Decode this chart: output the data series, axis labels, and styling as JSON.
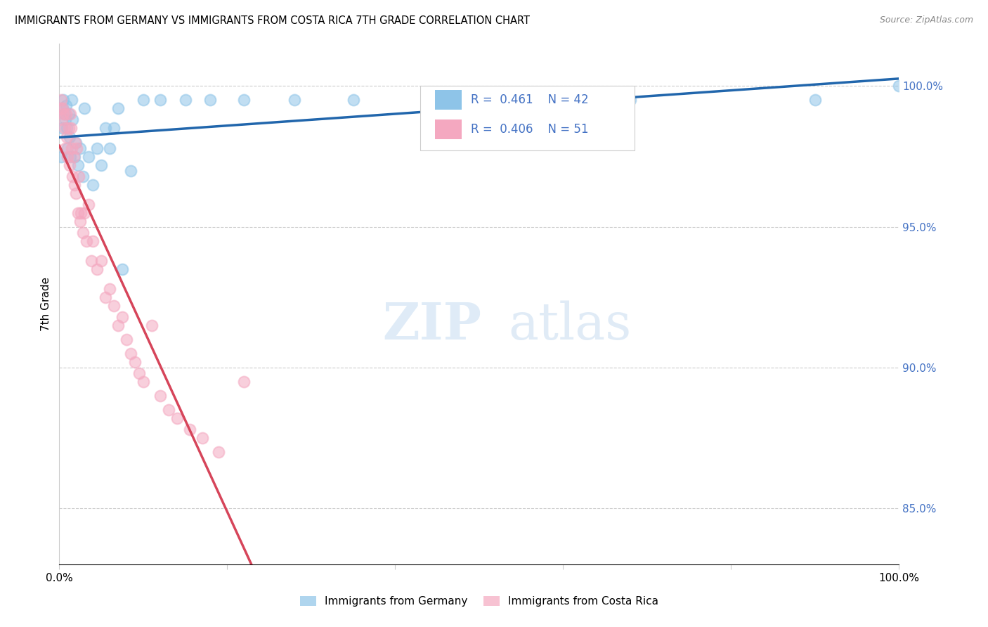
{
  "title": "IMMIGRANTS FROM GERMANY VS IMMIGRANTS FROM COSTA RICA 7TH GRADE CORRELATION CHART",
  "source": "Source: ZipAtlas.com",
  "ylabel": "7th Grade",
  "xlim": [
    0.0,
    100.0
  ],
  "ylim": [
    83.0,
    101.5
  ],
  "yticks": [
    85.0,
    90.0,
    95.0,
    100.0
  ],
  "r_germany": 0.461,
  "n_germany": 42,
  "r_costarica": 0.406,
  "n_costarica": 51,
  "color_germany": "#8ec4e8",
  "color_costarica": "#f4a8c0",
  "trendline_germany": "#2166ac",
  "trendline_costarica": "#d6455a",
  "legend_label_germany": "Immigrants from Germany",
  "legend_label_costarica": "Immigrants from Costa Rica",
  "germany_x": [
    0.2,
    0.3,
    0.4,
    0.5,
    0.6,
    0.7,
    0.8,
    0.9,
    1.0,
    1.1,
    1.2,
    1.3,
    1.5,
    1.6,
    1.8,
    2.0,
    2.2,
    2.5,
    2.8,
    3.0,
    3.5,
    4.0,
    4.5,
    5.0,
    5.5,
    6.0,
    6.5,
    7.0,
    7.5,
    8.5,
    10.0,
    12.0,
    15.0,
    18.0,
    22.0,
    28.0,
    35.0,
    45.0,
    55.0,
    68.0,
    90.0,
    100.0
  ],
  "germany_y": [
    97.5,
    98.5,
    99.2,
    99.5,
    99.0,
    98.8,
    99.3,
    98.5,
    97.8,
    99.0,
    98.2,
    97.5,
    99.5,
    98.8,
    97.5,
    98.0,
    97.2,
    97.8,
    96.8,
    99.2,
    97.5,
    96.5,
    97.8,
    97.2,
    98.5,
    97.8,
    98.5,
    99.2,
    93.5,
    97.0,
    99.5,
    99.5,
    99.5,
    99.5,
    99.5,
    99.5,
    99.5,
    99.5,
    99.5,
    99.5,
    99.5,
    100.0
  ],
  "costarica_x": [
    0.1,
    0.2,
    0.3,
    0.4,
    0.5,
    0.6,
    0.7,
    0.8,
    0.9,
    1.0,
    1.1,
    1.2,
    1.3,
    1.4,
    1.5,
    1.6,
    1.7,
    1.8,
    1.9,
    2.0,
    2.1,
    2.2,
    2.3,
    2.5,
    2.6,
    2.8,
    3.0,
    3.2,
    3.5,
    3.8,
    4.0,
    4.5,
    5.0,
    5.5,
    6.0,
    6.5,
    7.0,
    7.5,
    8.0,
    8.5,
    9.0,
    9.5,
    10.0,
    11.0,
    12.0,
    13.0,
    14.0,
    15.5,
    17.0,
    19.0,
    22.0
  ],
  "costarica_y": [
    99.2,
    99.5,
    98.8,
    99.2,
    99.0,
    98.5,
    97.8,
    99.0,
    98.2,
    97.5,
    98.5,
    97.2,
    99.0,
    98.5,
    97.8,
    96.8,
    97.5,
    96.5,
    98.0,
    96.2,
    97.8,
    95.5,
    96.8,
    95.2,
    95.5,
    94.8,
    95.5,
    94.5,
    95.8,
    93.8,
    94.5,
    93.5,
    93.8,
    92.5,
    92.8,
    92.2,
    91.5,
    91.8,
    91.0,
    90.5,
    90.2,
    89.8,
    89.5,
    91.5,
    89.0,
    88.5,
    88.2,
    87.8,
    87.5,
    87.0,
    89.5
  ],
  "watermark_zip": "ZIP",
  "watermark_atlas": "atlas"
}
